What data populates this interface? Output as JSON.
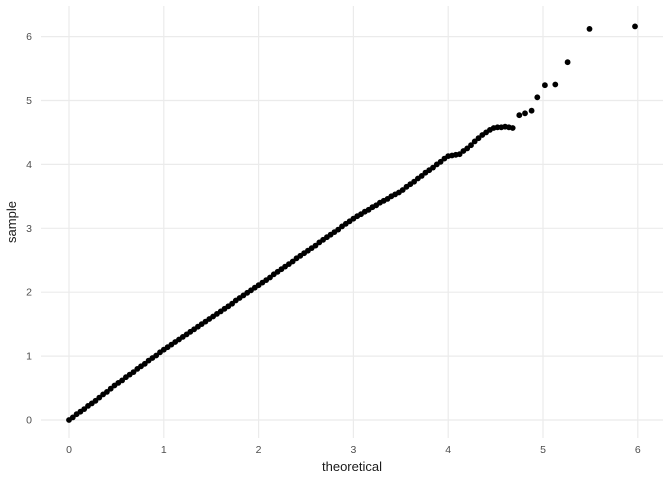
{
  "chart_data": {
    "type": "scatter",
    "title": "",
    "xlabel": "theoretical",
    "ylabel": "sample",
    "x_ticks": [
      0,
      1,
      2,
      3,
      4,
      5,
      6
    ],
    "y_ticks": [
      0,
      1,
      2,
      3,
      4,
      5,
      6
    ],
    "xlim": [
      -0.3,
      6.27
    ],
    "ylim": [
      -0.28,
      6.49
    ],
    "grid": "major-only",
    "legend": "none",
    "point_color": "#000000",
    "grid_color": "#ebebeb",
    "tick_text_color": "#4d4d4d",
    "axis_title_color": "#1a1a1a",
    "background_color": "#ffffff",
    "points": [
      [
        0,
        0
      ],
      [
        0.04,
        0.04
      ],
      [
        0.08,
        0.09
      ],
      [
        0.12,
        0.13
      ],
      [
        0.16,
        0.17
      ],
      [
        0.2,
        0.22
      ],
      [
        0.24,
        0.26
      ],
      [
        0.28,
        0.3
      ],
      [
        0.32,
        0.35
      ],
      [
        0.36,
        0.4
      ],
      [
        0.4,
        0.44
      ],
      [
        0.44,
        0.49
      ],
      [
        0.48,
        0.54
      ],
      [
        0.52,
        0.58
      ],
      [
        0.56,
        0.62
      ],
      [
        0.6,
        0.67
      ],
      [
        0.64,
        0.71
      ],
      [
        0.68,
        0.75
      ],
      [
        0.72,
        0.8
      ],
      [
        0.76,
        0.84
      ],
      [
        0.8,
        0.88
      ],
      [
        0.84,
        0.93
      ],
      [
        0.88,
        0.97
      ],
      [
        0.92,
        1.01
      ],
      [
        0.96,
        1.06
      ],
      [
        1,
        1.1
      ],
      [
        1.04,
        1.14
      ],
      [
        1.08,
        1.18
      ],
      [
        1.12,
        1.22
      ],
      [
        1.16,
        1.26
      ],
      [
        1.2,
        1.3
      ],
      [
        1.24,
        1.34
      ],
      [
        1.28,
        1.38
      ],
      [
        1.32,
        1.42
      ],
      [
        1.36,
        1.46
      ],
      [
        1.4,
        1.5
      ],
      [
        1.44,
        1.54
      ],
      [
        1.48,
        1.58
      ],
      [
        1.52,
        1.62
      ],
      [
        1.56,
        1.66
      ],
      [
        1.6,
        1.7
      ],
      [
        1.64,
        1.74
      ],
      [
        1.68,
        1.78
      ],
      [
        1.72,
        1.82
      ],
      [
        1.76,
        1.87
      ],
      [
        1.8,
        1.91
      ],
      [
        1.84,
        1.95
      ],
      [
        1.88,
        1.99
      ],
      [
        1.92,
        2.03
      ],
      [
        1.96,
        2.07
      ],
      [
        2,
        2.11
      ],
      [
        2.04,
        2.15
      ],
      [
        2.08,
        2.19
      ],
      [
        2.12,
        2.23
      ],
      [
        2.16,
        2.28
      ],
      [
        2.2,
        2.32
      ],
      [
        2.24,
        2.36
      ],
      [
        2.28,
        2.4
      ],
      [
        2.32,
        2.44
      ],
      [
        2.36,
        2.48
      ],
      [
        2.4,
        2.53
      ],
      [
        2.44,
        2.57
      ],
      [
        2.48,
        2.61
      ],
      [
        2.52,
        2.65
      ],
      [
        2.56,
        2.69
      ],
      [
        2.6,
        2.73
      ],
      [
        2.64,
        2.78
      ],
      [
        2.68,
        2.82
      ],
      [
        2.72,
        2.86
      ],
      [
        2.76,
        2.9
      ],
      [
        2.8,
        2.94
      ],
      [
        2.84,
        2.98
      ],
      [
        2.88,
        3.03
      ],
      [
        2.92,
        3.07
      ],
      [
        2.96,
        3.11
      ],
      [
        3,
        3.15
      ],
      [
        3.04,
        3.19
      ],
      [
        3.08,
        3.22
      ],
      [
        3.12,
        3.26
      ],
      [
        3.16,
        3.29
      ],
      [
        3.2,
        3.33
      ],
      [
        3.24,
        3.36
      ],
      [
        3.28,
        3.4
      ],
      [
        3.32,
        3.43
      ],
      [
        3.36,
        3.46
      ],
      [
        3.4,
        3.5
      ],
      [
        3.44,
        3.53
      ],
      [
        3.48,
        3.56
      ],
      [
        3.52,
        3.6
      ],
      [
        3.56,
        3.65
      ],
      [
        3.6,
        3.69
      ],
      [
        3.64,
        3.73
      ],
      [
        3.68,
        3.78
      ],
      [
        3.72,
        3.82
      ],
      [
        3.76,
        3.87
      ],
      [
        3.8,
        3.91
      ],
      [
        3.84,
        3.95
      ],
      [
        3.88,
        4
      ],
      [
        3.92,
        4.04
      ],
      [
        3.96,
        4.09
      ],
      [
        4,
        4.13
      ],
      [
        4.04,
        4.14
      ],
      [
        4.08,
        4.15
      ],
      [
        4.12,
        4.16
      ],
      [
        4.16,
        4.21
      ],
      [
        4.2,
        4.25
      ],
      [
        4.24,
        4.3
      ],
      [
        4.28,
        4.36
      ],
      [
        4.32,
        4.41
      ],
      [
        4.36,
        4.46
      ],
      [
        4.4,
        4.5
      ],
      [
        4.44,
        4.54
      ],
      [
        4.48,
        4.57
      ],
      [
        4.52,
        4.58
      ],
      [
        4.56,
        4.58
      ],
      [
        4.6,
        4.59
      ],
      [
        4.64,
        4.58
      ],
      [
        4.68,
        4.57
      ],
      [
        4.75,
        4.77
      ],
      [
        4.81,
        4.8
      ],
      [
        4.88,
        4.84
      ],
      [
        4.94,
        5.05
      ],
      [
        5.02,
        5.24
      ],
      [
        5.13,
        5.25
      ],
      [
        5.26,
        5.6
      ],
      [
        5.49,
        6.12
      ],
      [
        5.97,
        6.16
      ]
    ]
  }
}
